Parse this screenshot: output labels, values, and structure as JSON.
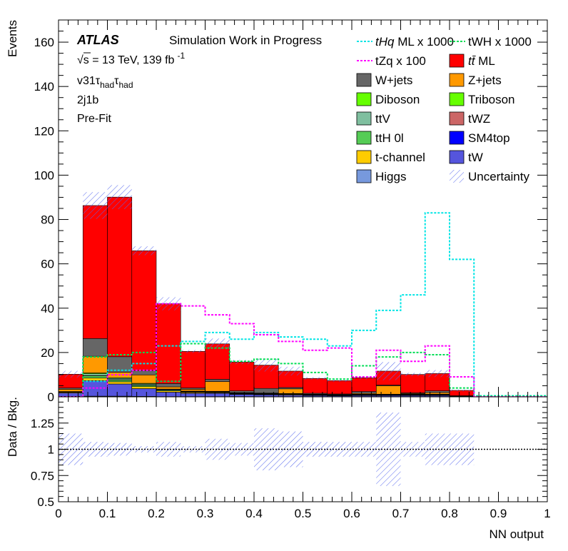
{
  "chart_data": {
    "type": "bar",
    "stacked": true,
    "panels": [
      "main",
      "ratio"
    ],
    "x_bin_edges": [
      0,
      0.05,
      0.1,
      0.15,
      0.2,
      0.25,
      0.3,
      0.35,
      0.4,
      0.45,
      0.5,
      0.55,
      0.6,
      0.65,
      0.7,
      0.75,
      0.8,
      0.85,
      0.9,
      0.95,
      1.0
    ],
    "xlabel": "NN output",
    "ylabel": "Events",
    "ratio_ylabel": "Data / Bkg.",
    "xlim": [
      0,
      1
    ],
    "ylim": [
      0,
      170
    ],
    "ratio_ylim": [
      0.5,
      1.5
    ],
    "x_ticks": [
      0,
      0.1,
      0.2,
      0.3,
      0.4,
      0.5,
      0.6,
      0.7,
      0.8,
      0.9,
      1
    ],
    "x_tick_labels": [
      "0",
      "0.1",
      "0.2",
      "0.3",
      "0.4",
      "0.5",
      "0.6",
      "0.7",
      "0.8",
      "0.9",
      "1"
    ],
    "y_ticks": [
      0,
      20,
      40,
      60,
      80,
      100,
      120,
      140,
      160
    ],
    "y_tick_labels": [
      "0",
      "20",
      "40",
      "60",
      "80",
      "100",
      "120",
      "140",
      "160"
    ],
    "ratio_ticks": [
      0.5,
      0.75,
      1,
      1.25
    ],
    "ratio_tick_labels": [
      "0.5",
      "0.75",
      "1",
      "1.25"
    ],
    "ratio_reference": 1,
    "annotations": {
      "experiment": "ATLAS",
      "status": "Simulation Work in Progress",
      "energy": "√s = 13 TeV, 139 fb",
      "lumi_exp": "-1",
      "channel": "v31τ",
      "channel_sub1": "had",
      "channel_tau2": "τ",
      "channel_sub2": "had",
      "region": "2j1b",
      "fit_state": "Pre-Fit"
    },
    "legend_placement": "top-right",
    "stack_order_bottom_to_top": [
      "Higgs",
      "tW",
      "t-channel",
      "SM4top",
      "ttH 0l",
      "tWZ",
      "ttV",
      "Triboson",
      "Diboson",
      "Z+jets",
      "W+jets",
      "tt ML"
    ],
    "series": [
      {
        "name": "tt ML",
        "color": "#ff0000",
        "values": [
          6.2,
          60,
          72,
          54,
          36,
          16.5,
          16,
          13,
          10.5,
          7.4,
          6.7,
          6,
          6.2,
          6.3,
          8.3,
          7.8,
          2.4,
          0,
          0,
          0
        ]
      },
      {
        "name": "W+jets",
        "color": "#666666",
        "values": [
          0.6,
          8,
          7,
          2,
          1.5,
          0.6,
          1,
          0.8,
          2.1,
          0.6,
          0.4,
          0.3,
          0.8,
          0.3,
          0.3,
          0.8,
          0,
          0,
          0,
          0
        ]
      },
      {
        "name": "Z+jets",
        "color": "#ff9900",
        "values": [
          1,
          7.5,
          2.5,
          3.8,
          1,
          0.8,
          4.4,
          0.2,
          0.2,
          2.1,
          0.2,
          0.2,
          0.4,
          3.8,
          0.3,
          0.7,
          0,
          0,
          0,
          0
        ]
      },
      {
        "name": "Diboson",
        "color": "#66ff00",
        "values": [
          0,
          0.4,
          0.3,
          0.3,
          0.2,
          0.2,
          0.2,
          0,
          0,
          0,
          0,
          0,
          0,
          0,
          0,
          0,
          0,
          0,
          0,
          0
        ]
      },
      {
        "name": "Triboson",
        "color": "#66ff00",
        "values": [
          0,
          0,
          0,
          0,
          0,
          0,
          0,
          0,
          0,
          0,
          0,
          0,
          0,
          0,
          0,
          0,
          0,
          0,
          0,
          0
        ]
      },
      {
        "name": "ttV",
        "color": "#7fbf9f",
        "values": [
          0.2,
          0.8,
          0.6,
          0.5,
          0.3,
          0.2,
          0.2,
          0.2,
          0.2,
          0.2,
          0.1,
          0.1,
          0.2,
          0.2,
          0.2,
          0.2,
          0.1,
          0,
          0,
          0
        ]
      },
      {
        "name": "tWZ",
        "color": "#cc6666",
        "values": [
          0,
          0.1,
          0.1,
          0.1,
          0,
          0,
          0,
          0,
          0,
          0,
          0,
          0,
          0,
          0,
          0,
          0,
          0,
          0,
          0,
          0
        ]
      },
      {
        "name": "ttH 0l",
        "color": "#55cc55",
        "values": [
          0.2,
          1,
          0.8,
          0.6,
          0.3,
          0.2,
          0.2,
          0.2,
          0.2,
          0.2,
          0.1,
          0.1,
          0.2,
          0.2,
          0.2,
          0.2,
          0.1,
          0,
          0,
          0
        ]
      },
      {
        "name": "SM4top",
        "color": "#0000ff",
        "values": [
          0,
          0,
          0,
          0,
          0,
          0,
          0,
          0,
          0,
          0,
          0,
          0,
          0,
          0,
          0,
          0,
          0,
          0,
          0,
          0
        ]
      },
      {
        "name": "t-channel",
        "color": "#ffcc00",
        "values": [
          0.3,
          1.2,
          1,
          0.9,
          0.6,
          0.4,
          0.3,
          0.2,
          0.2,
          0.3,
          0.2,
          0.1,
          0.2,
          0.2,
          0.2,
          0.2,
          0.1,
          0,
          0,
          0
        ]
      },
      {
        "name": "tW",
        "color": "#5555dd",
        "values": [
          1.5,
          7,
          5.5,
          3.5,
          2,
          1.5,
          1.5,
          1,
          0.8,
          0.7,
          0.5,
          0.4,
          0.5,
          0.5,
          0.5,
          0.5,
          0.2,
          0,
          0,
          0
        ]
      },
      {
        "name": "Higgs",
        "color": "#7799dd",
        "values": [
          0.2,
          0.3,
          0.3,
          0.2,
          0.1,
          0.1,
          0.1,
          0.1,
          0.1,
          0.1,
          0.1,
          0.1,
          0.1,
          0.1,
          0.1,
          0.1,
          0,
          0,
          0,
          0
        ]
      }
    ],
    "uncertainty": {
      "name": "Uncertainty",
      "color": "#5566ee",
      "rel_err": [
        0.15,
        0.07,
        0.06,
        0.03,
        0.07,
        0.03,
        0.1,
        0.06,
        0.2,
        0.17,
        0.07,
        0.07,
        0.07,
        0.35,
        0.07,
        0.15,
        0.15,
        0,
        0,
        0
      ]
    },
    "signal_overlays": [
      {
        "name": "tHq ML x 1000",
        "name_italic": "tHq",
        "name_rest": " ML x 1000",
        "color": "#00e5e5",
        "values": [
          0,
          7,
          12,
          15,
          23,
          25,
          29,
          26,
          29,
          27,
          26,
          23,
          30,
          39,
          46,
          83,
          62,
          0.5,
          0.5,
          0.5
        ]
      },
      {
        "name": "tWH x 1000",
        "color": "#00dd55",
        "values": [
          0,
          18,
          19,
          20,
          7,
          24,
          22,
          16,
          17,
          15,
          11,
          8,
          14,
          18,
          20,
          19,
          4,
          0.3,
          0.3,
          0.3
        ]
      },
      {
        "name": "tZq x 100",
        "color": "#ff00ff",
        "values": [
          0,
          4,
          10,
          12,
          42,
          41,
          37,
          33,
          28,
          25,
          21,
          22,
          9,
          21,
          16,
          23,
          9,
          0,
          0,
          0
        ]
      }
    ],
    "legend": [
      {
        "id": "thq",
        "label_italic": "tHq",
        "label": " ML x 1000",
        "style": "dash",
        "color": "#00e5e5"
      },
      {
        "id": "twh",
        "label": "tWH x 1000",
        "style": "dash",
        "color": "#00dd55"
      },
      {
        "id": "tzq",
        "label": "tZq x 100",
        "style": "dash",
        "color": "#ff00ff"
      },
      {
        "id": "ttml",
        "label_italic": "tt̄",
        "label": " ML",
        "style": "box",
        "color": "#ff0000"
      },
      {
        "id": "wjets",
        "label": "W+jets",
        "style": "box",
        "color": "#666666"
      },
      {
        "id": "zjets",
        "label": "Z+jets",
        "style": "box",
        "color": "#ff9900"
      },
      {
        "id": "diboson",
        "label": "Diboson",
        "style": "box",
        "color": "#66ff00"
      },
      {
        "id": "triboson",
        "label": "Triboson",
        "style": "box",
        "color": "#66ff00"
      },
      {
        "id": "ttv",
        "label": "ttV",
        "style": "box",
        "color": "#7fbf9f"
      },
      {
        "id": "twz",
        "label": "tWZ",
        "style": "box",
        "color": "#cc6666"
      },
      {
        "id": "tth",
        "label": "ttH 0l",
        "style": "box",
        "color": "#55cc55"
      },
      {
        "id": "sm4top",
        "label": "SM4top",
        "style": "box",
        "color": "#0000ff"
      },
      {
        "id": "tchan",
        "label": "t-channel",
        "style": "box",
        "color": "#ffcc00"
      },
      {
        "id": "tw",
        "label": "tW",
        "style": "box",
        "color": "#5555dd"
      },
      {
        "id": "higgs",
        "label": "Higgs",
        "style": "box",
        "color": "#7799dd"
      },
      {
        "id": "unc",
        "label": "Uncertainty",
        "style": "hatch",
        "color": "#5566ee"
      }
    ]
  }
}
